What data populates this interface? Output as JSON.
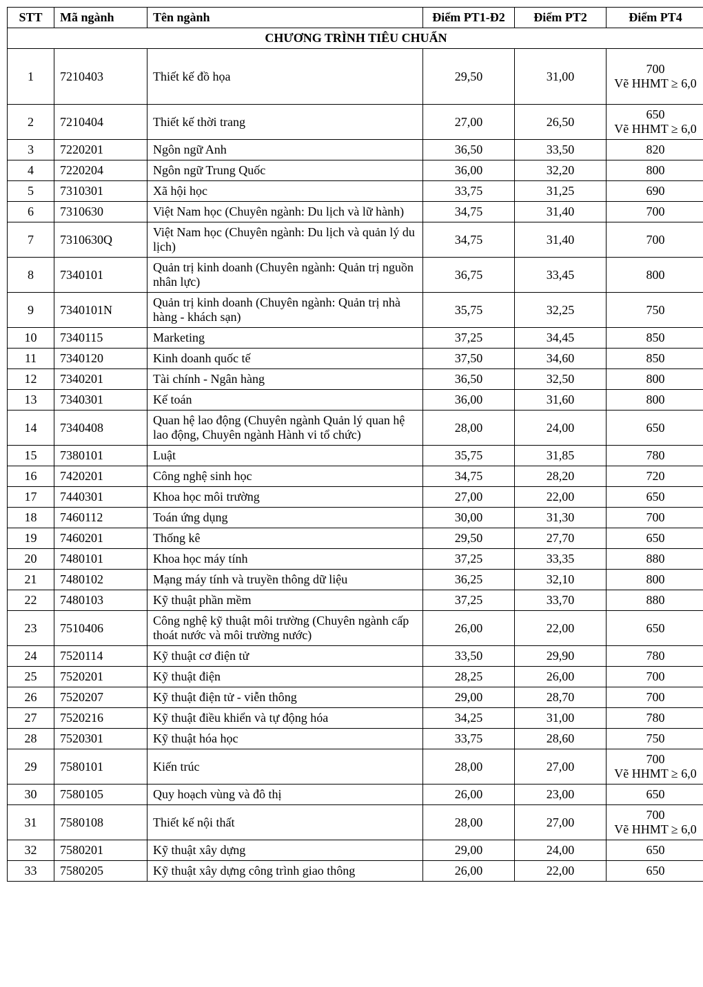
{
  "headers": {
    "stt": "STT",
    "code": "Mã ngành",
    "name": "Tên ngành",
    "pt1": "Điểm PT1-Đ2",
    "pt2": "Điểm PT2",
    "pt4": "Điểm PT4"
  },
  "section_title": "CHƯƠNG TRÌNH TIÊU CHUẨN",
  "pt4_note": "Vẽ HHMT ≥ 6,0",
  "colors": {
    "background": "#ffffff",
    "text": "#000000",
    "border": "#000000"
  },
  "rows": [
    {
      "stt": "1",
      "code": "7210403",
      "name": "Thiết kế đồ họa",
      "pt1": "29,50",
      "pt2": "31,00",
      "pt4": "700",
      "pt4_has_note": true,
      "tall": true
    },
    {
      "stt": "2",
      "code": "7210404",
      "name": "Thiết kế thời trang",
      "pt1": "27,00",
      "pt2": "26,50",
      "pt4": "650",
      "pt4_has_note": true,
      "tall": false
    },
    {
      "stt": "3",
      "code": "7220201",
      "name": "Ngôn ngữ Anh",
      "pt1": "36,50",
      "pt2": "33,50",
      "pt4": "820",
      "pt4_has_note": false,
      "tall": false
    },
    {
      "stt": "4",
      "code": "7220204",
      "name": "Ngôn ngữ Trung Quốc",
      "pt1": "36,00",
      "pt2": "32,20",
      "pt4": "800",
      "pt4_has_note": false,
      "tall": false
    },
    {
      "stt": "5",
      "code": "7310301",
      "name": "Xã hội học",
      "pt1": "33,75",
      "pt2": "31,25",
      "pt4": "690",
      "pt4_has_note": false,
      "tall": false
    },
    {
      "stt": "6",
      "code": "7310630",
      "name": "Việt Nam học (Chuyên ngành: Du lịch và lữ hành)",
      "pt1": "34,75",
      "pt2": "31,40",
      "pt4": "700",
      "pt4_has_note": false,
      "tall": false
    },
    {
      "stt": "7",
      "code": "7310630Q",
      "name": "Việt Nam học (Chuyên ngành: Du lịch và quản lý du lịch)",
      "pt1": "34,75",
      "pt2": "31,40",
      "pt4": "700",
      "pt4_has_note": false,
      "tall": false
    },
    {
      "stt": "8",
      "code": "7340101",
      "name": "Quản trị kinh doanh (Chuyên ngành: Quản trị nguồn nhân lực)",
      "pt1": "36,75",
      "pt2": "33,45",
      "pt4": "800",
      "pt4_has_note": false,
      "tall": false
    },
    {
      "stt": "9",
      "code": "7340101N",
      "name": "Quản trị kinh doanh (Chuyên ngành: Quản trị nhà hàng - khách sạn)",
      "pt1": "35,75",
      "pt2": "32,25",
      "pt4": "750",
      "pt4_has_note": false,
      "tall": false
    },
    {
      "stt": "10",
      "code": "7340115",
      "name": "Marketing",
      "pt1": "37,25",
      "pt2": "34,45",
      "pt4": "850",
      "pt4_has_note": false,
      "tall": false
    },
    {
      "stt": "11",
      "code": "7340120",
      "name": "Kinh doanh quốc tế",
      "pt1": "37,50",
      "pt2": "34,60",
      "pt4": "850",
      "pt4_has_note": false,
      "tall": false
    },
    {
      "stt": "12",
      "code": "7340201",
      "name": "Tài chính - Ngân hàng",
      "pt1": "36,50",
      "pt2": "32,50",
      "pt4": "800",
      "pt4_has_note": false,
      "tall": false
    },
    {
      "stt": "13",
      "code": "7340301",
      "name": "Kế toán",
      "pt1": "36,00",
      "pt2": "31,60",
      "pt4": "800",
      "pt4_has_note": false,
      "tall": false
    },
    {
      "stt": "14",
      "code": "7340408",
      "name": "Quan hệ lao động (Chuyên ngành Quản lý quan hệ lao động, Chuyên ngành Hành vi tổ chức)",
      "pt1": "28,00",
      "pt2": "24,00",
      "pt4": "650",
      "pt4_has_note": false,
      "tall": false
    },
    {
      "stt": "15",
      "code": "7380101",
      "name": "Luật",
      "pt1": "35,75",
      "pt2": "31,85",
      "pt4": "780",
      "pt4_has_note": false,
      "tall": false
    },
    {
      "stt": "16",
      "code": "7420201",
      "name": "Công nghệ sinh học",
      "pt1": "34,75",
      "pt2": "28,20",
      "pt4": "720",
      "pt4_has_note": false,
      "tall": false
    },
    {
      "stt": "17",
      "code": "7440301",
      "name": "Khoa học môi trường",
      "pt1": "27,00",
      "pt2": "22,00",
      "pt4": "650",
      "pt4_has_note": false,
      "tall": false
    },
    {
      "stt": "18",
      "code": "7460112",
      "name": "Toán ứng dụng",
      "pt1": "30,00",
      "pt2": "31,30",
      "pt4": "700",
      "pt4_has_note": false,
      "tall": false
    },
    {
      "stt": "19",
      "code": "7460201",
      "name": "Thống kê",
      "pt1": "29,50",
      "pt2": "27,70",
      "pt4": "650",
      "pt4_has_note": false,
      "tall": false
    },
    {
      "stt": "20",
      "code": "7480101",
      "name": "Khoa học máy tính",
      "pt1": "37,25",
      "pt2": "33,35",
      "pt4": "880",
      "pt4_has_note": false,
      "tall": false
    },
    {
      "stt": "21",
      "code": "7480102",
      "name": "Mạng máy tính và truyền thông dữ liệu",
      "pt1": "36,25",
      "pt2": "32,10",
      "pt4": "800",
      "pt4_has_note": false,
      "tall": false
    },
    {
      "stt": "22",
      "code": "7480103",
      "name": "Kỹ thuật phần mềm",
      "pt1": "37,25",
      "pt2": "33,70",
      "pt4": "880",
      "pt4_has_note": false,
      "tall": false
    },
    {
      "stt": "23",
      "code": "7510406",
      "name": "Công nghệ kỹ thuật môi trường (Chuyên ngành cấp thoát nước và môi trường nước)",
      "pt1": "26,00",
      "pt2": "22,00",
      "pt4": "650",
      "pt4_has_note": false,
      "tall": false
    },
    {
      "stt": "24",
      "code": "7520114",
      "name": "Kỹ thuật cơ điện tử",
      "pt1": "33,50",
      "pt2": "29,90",
      "pt4": "780",
      "pt4_has_note": false,
      "tall": false
    },
    {
      "stt": "25",
      "code": "7520201",
      "name": "Kỹ thuật điện",
      "pt1": "28,25",
      "pt2": "26,00",
      "pt4": "700",
      "pt4_has_note": false,
      "tall": false
    },
    {
      "stt": "26",
      "code": "7520207",
      "name": "Kỹ thuật điện tử - viễn thông",
      "pt1": "29,00",
      "pt2": "28,70",
      "pt4": "700",
      "pt4_has_note": false,
      "tall": false
    },
    {
      "stt": "27",
      "code": "7520216",
      "name": "Kỹ thuật điều khiển và tự động hóa",
      "pt1": "34,25",
      "pt2": "31,00",
      "pt4": "780",
      "pt4_has_note": false,
      "tall": false
    },
    {
      "stt": "28",
      "code": "7520301",
      "name": "Kỹ thuật hóa học",
      "pt1": "33,75",
      "pt2": "28,60",
      "pt4": "750",
      "pt4_has_note": false,
      "tall": false
    },
    {
      "stt": "29",
      "code": "7580101",
      "name": "Kiến trúc",
      "pt1": "28,00",
      "pt2": "27,00",
      "pt4": "700",
      "pt4_has_note": true,
      "tall": false
    },
    {
      "stt": "30",
      "code": "7580105",
      "name": "Quy hoạch vùng và đô thị",
      "pt1": "26,00",
      "pt2": "23,00",
      "pt4": "650",
      "pt4_has_note": false,
      "tall": false
    },
    {
      "stt": "31",
      "code": "7580108",
      "name": "Thiết kế nội thất",
      "pt1": "28,00",
      "pt2": "27,00",
      "pt4": "700",
      "pt4_has_note": true,
      "tall": false
    },
    {
      "stt": "32",
      "code": "7580201",
      "name": "Kỹ thuật xây dựng",
      "pt1": "29,00",
      "pt2": "24,00",
      "pt4": "650",
      "pt4_has_note": false,
      "tall": false
    },
    {
      "stt": "33",
      "code": "7580205",
      "name": "Kỹ thuật xây dựng công trình giao thông",
      "pt1": "26,00",
      "pt2": "22,00",
      "pt4": "650",
      "pt4_has_note": false,
      "tall": false
    }
  ]
}
